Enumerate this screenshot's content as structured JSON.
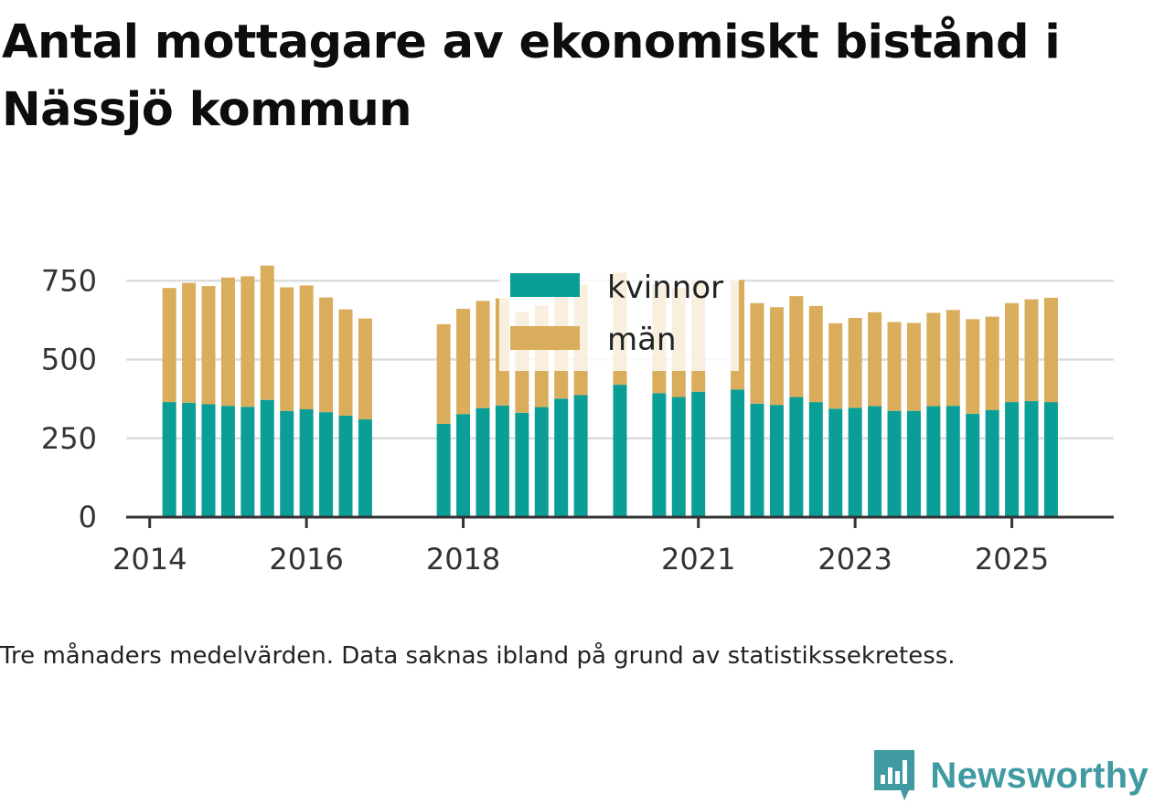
{
  "title": "Antal mottagare av ekonomiskt bistånd i Nässjö kommun",
  "caption": "Tre månaders medelvärden. Data saknas ibland på grund av statistikssekretess.",
  "brand": "Newsworthy",
  "colors": {
    "kvinnor": "#0a9e96",
    "man": "#d9ad5c",
    "grid": "#dcdcdc",
    "axis": "#333333"
  },
  "chart_data": {
    "type": "bar",
    "stacked": true,
    "ylim": [
      0,
      800
    ],
    "yticks": [
      0,
      250,
      500,
      750
    ],
    "xlim": [
      2013.7,
      2026.3
    ],
    "xticks": [
      2014,
      2016,
      2018,
      2021,
      2023,
      2025
    ],
    "xtick_labels": [
      "2014",
      "2016",
      "2018",
      "2021",
      "2023",
      "2025"
    ],
    "legend": {
      "position": "top-center",
      "entries": [
        "kvinnor",
        "män"
      ]
    },
    "x": [
      2014.25,
      2014.5,
      2014.75,
      2015.0,
      2015.25,
      2015.5,
      2015.75,
      2016.0,
      2016.25,
      2016.5,
      2016.75,
      2017.75,
      2018.0,
      2018.25,
      2018.5,
      2018.75,
      2019.0,
      2019.25,
      2019.5,
      2020.0,
      2020.5,
      2020.75,
      2021.0,
      2021.5,
      2021.75,
      2022.0,
      2022.25,
      2022.5,
      2022.75,
      2023.0,
      2023.25,
      2023.5,
      2023.75,
      2024.0,
      2024.25,
      2024.5,
      2024.75,
      2025.0,
      2025.25,
      2025.5
    ],
    "series": [
      {
        "name": "kvinnor",
        "values": [
          365,
          363,
          358,
          353,
          350,
          372,
          337,
          342,
          333,
          322,
          310,
          296,
          327,
          346,
          354,
          331,
          349,
          376,
          387,
          420,
          393,
          381,
          398,
          405,
          360,
          356,
          381,
          365,
          344,
          347,
          352,
          337,
          337,
          352,
          353,
          328,
          340,
          365,
          368,
          365
        ]
      },
      {
        "name": "män",
        "values": [
          362,
          380,
          375,
          407,
          414,
          426,
          392,
          393,
          364,
          337,
          320,
          316,
          334,
          340,
          340,
          320,
          321,
          335,
          350,
          356,
          345,
          347,
          352,
          347,
          319,
          310,
          320,
          305,
          271,
          285,
          298,
          282,
          279,
          296,
          304,
          300,
          296,
          314,
          323,
          331
        ]
      }
    ]
  }
}
